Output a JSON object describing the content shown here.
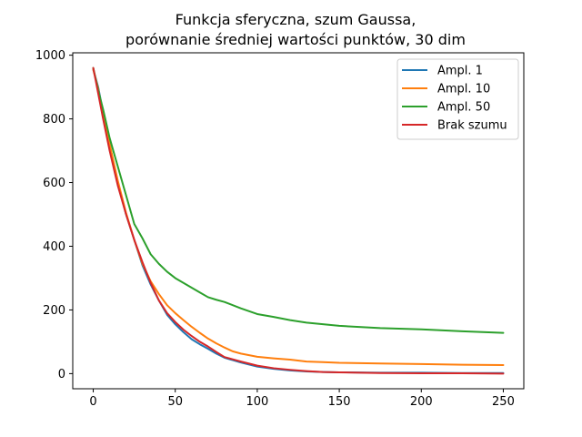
{
  "chart_data": {
    "type": "line",
    "title_line1": "Funkcja sferyczna, szum Gaussa,",
    "title_line2": "porównanie średniej wartości punktów, 30 dim",
    "xlabel": "",
    "ylabel": "",
    "xlim": [
      -12.5,
      262.5
    ],
    "ylim": [
      -47.5,
      1007.5
    ],
    "x_ticks": [
      0,
      50,
      100,
      150,
      200,
      250
    ],
    "y_ticks": [
      0,
      200,
      400,
      600,
      800,
      1000
    ],
    "grid": false,
    "legend_position": "top-right",
    "series": [
      {
        "name": "Ampl. 1",
        "color": "#1f77b4",
        "points": [
          [
            0,
            955
          ],
          [
            3,
            900
          ],
          [
            6,
            820
          ],
          [
            10,
            720
          ],
          [
            15,
            600
          ],
          [
            20,
            500
          ],
          [
            25,
            420
          ],
          [
            30,
            340
          ],
          [
            35,
            280
          ],
          [
            40,
            230
          ],
          [
            45,
            185
          ],
          [
            50,
            155
          ],
          [
            55,
            130
          ],
          [
            60,
            108
          ],
          [
            65,
            92
          ],
          [
            70,
            78
          ],
          [
            75,
            63
          ],
          [
            80,
            50
          ],
          [
            90,
            35
          ],
          [
            100,
            22
          ],
          [
            110,
            15
          ],
          [
            120,
            10
          ],
          [
            130,
            7
          ],
          [
            140,
            5
          ],
          [
            150,
            4
          ],
          [
            175,
            3
          ],
          [
            200,
            3
          ],
          [
            225,
            2
          ],
          [
            250,
            2
          ]
        ]
      },
      {
        "name": "Ampl. 10",
        "color": "#ff7f0e",
        "points": [
          [
            0,
            955
          ],
          [
            3,
            895
          ],
          [
            6,
            810
          ],
          [
            10,
            720
          ],
          [
            15,
            605
          ],
          [
            20,
            505
          ],
          [
            25,
            420
          ],
          [
            30,
            345
          ],
          [
            35,
            290
          ],
          [
            40,
            250
          ],
          [
            45,
            215
          ],
          [
            50,
            190
          ],
          [
            55,
            168
          ],
          [
            60,
            147
          ],
          [
            65,
            128
          ],
          [
            70,
            110
          ],
          [
            75,
            95
          ],
          [
            80,
            82
          ],
          [
            85,
            70
          ],
          [
            90,
            63
          ],
          [
            95,
            58
          ],
          [
            100,
            53
          ],
          [
            110,
            48
          ],
          [
            120,
            44
          ],
          [
            130,
            38
          ],
          [
            140,
            36
          ],
          [
            150,
            34
          ],
          [
            175,
            32
          ],
          [
            200,
            30
          ],
          [
            225,
            28
          ],
          [
            250,
            27
          ]
        ]
      },
      {
        "name": "Ampl. 50",
        "color": "#2ca02c",
        "points": [
          [
            0,
            960
          ],
          [
            3,
            890
          ],
          [
            6,
            830
          ],
          [
            10,
            740
          ],
          [
            15,
            650
          ],
          [
            20,
            560
          ],
          [
            25,
            470
          ],
          [
            30,
            425
          ],
          [
            35,
            375
          ],
          [
            40,
            345
          ],
          [
            45,
            320
          ],
          [
            50,
            300
          ],
          [
            55,
            285
          ],
          [
            60,
            270
          ],
          [
            65,
            255
          ],
          [
            70,
            240
          ],
          [
            75,
            232
          ],
          [
            80,
            225
          ],
          [
            90,
            205
          ],
          [
            100,
            187
          ],
          [
            110,
            178
          ],
          [
            120,
            168
          ],
          [
            130,
            160
          ],
          [
            140,
            155
          ],
          [
            150,
            150
          ],
          [
            175,
            143
          ],
          [
            200,
            139
          ],
          [
            225,
            133
          ],
          [
            250,
            128
          ]
        ]
      },
      {
        "name": "Brak szumu",
        "color": "#d62728",
        "points": [
          [
            0,
            960
          ],
          [
            3,
            880
          ],
          [
            6,
            800
          ],
          [
            10,
            700
          ],
          [
            15,
            590
          ],
          [
            20,
            500
          ],
          [
            25,
            420
          ],
          [
            30,
            350
          ],
          [
            35,
            285
          ],
          [
            40,
            230
          ],
          [
            45,
            190
          ],
          [
            50,
            162
          ],
          [
            55,
            138
          ],
          [
            60,
            118
          ],
          [
            65,
            100
          ],
          [
            70,
            85
          ],
          [
            75,
            68
          ],
          [
            80,
            52
          ],
          [
            90,
            38
          ],
          [
            100,
            25
          ],
          [
            110,
            17
          ],
          [
            120,
            12
          ],
          [
            130,
            8
          ],
          [
            140,
            5
          ],
          [
            150,
            4
          ],
          [
            175,
            2
          ],
          [
            200,
            1
          ],
          [
            225,
            1
          ],
          [
            250,
            0
          ]
        ]
      }
    ]
  }
}
